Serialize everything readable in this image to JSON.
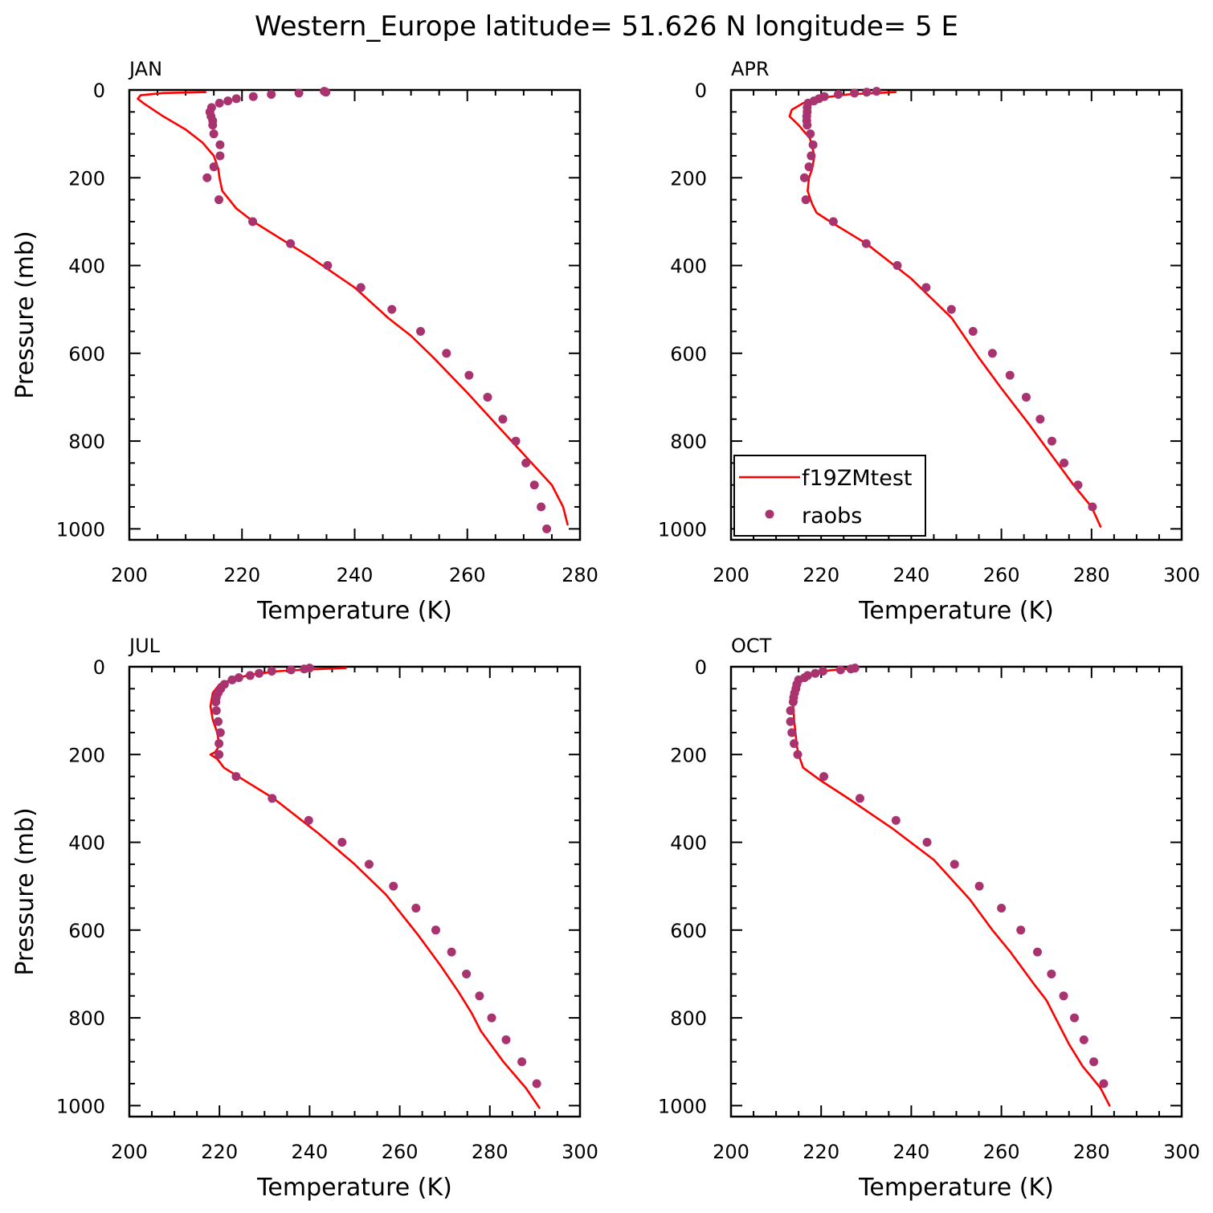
{
  "title": "Western_Europe  latitude= 51.626 N longitude= 5 E",
  "colors": {
    "model": "#ff0000",
    "obs": "#a8336e"
  },
  "legend": {
    "panel": 1,
    "model_label": "f19ZMtest",
    "obs_label": "raobs"
  },
  "chart_data": [
    {
      "type": "line",
      "panel_label": "JAN",
      "xlabel": "Temperature (K)",
      "ylabel": "Pressure (mb)",
      "xlim": [
        200,
        280
      ],
      "ylim": [
        0,
        1025
      ],
      "y_inverted": true,
      "xticks": [
        200,
        220,
        240,
        260,
        280
      ],
      "yticks": [
        0,
        200,
        400,
        600,
        800,
        1000
      ],
      "series": [
        {
          "type": "line",
          "x": [
            213.5,
            206.0,
            202.0,
            201.5,
            202.5,
            206.0,
            210.0,
            213.0,
            215.0,
            215.8,
            216.0,
            216.5,
            219.0,
            222.0,
            232.0,
            240.0,
            246.0,
            250.0,
            254.0,
            260.0,
            265.0,
            270.0,
            275.0,
            277.0,
            277.8
          ],
          "y": [
            5,
            7,
            12,
            20,
            30,
            60,
            90,
            120,
            150,
            180,
            200,
            230,
            270,
            300,
            380,
            450,
            520,
            560,
            610,
            690,
            760,
            830,
            900,
            950,
            990
          ]
        },
        {
          "type": "scatter",
          "x": [
            234.6,
            234.9,
            230.1,
            225.2,
            222.0,
            219.0,
            217.5,
            216.0,
            214.6,
            214.3,
            214.5,
            214.8,
            214.8,
            215.0,
            216.1,
            216.1,
            215.0,
            213.8,
            215.9,
            221.9,
            228.6,
            235.2,
            241.1,
            246.6,
            251.7,
            256.3,
            260.3,
            263.6,
            266.3,
            268.6,
            270.4,
            271.9,
            273.1,
            274.1
          ],
          "y": [
            3,
            5,
            7,
            10,
            15,
            20,
            25,
            30,
            40,
            50,
            60,
            70,
            80,
            100,
            125,
            150,
            175,
            200,
            250,
            300,
            350,
            400,
            450,
            500,
            550,
            600,
            650,
            700,
            750,
            800,
            850,
            900,
            950,
            1000
          ]
        }
      ]
    },
    {
      "type": "line",
      "panel_label": "APR",
      "xlabel": "Temperature (K)",
      "ylabel": "",
      "xlim": [
        200,
        300
      ],
      "ylim": [
        0,
        1025
      ],
      "y_inverted": true,
      "xticks": [
        200,
        220,
        240,
        260,
        280,
        300
      ],
      "yticks": [
        0,
        200,
        400,
        600,
        800,
        1000
      ],
      "series": [
        {
          "type": "line",
          "x": [
            236.5,
            226.0,
            220.0,
            216.0,
            213.5,
            213.0,
            215.0,
            217.5,
            218.5,
            218.0,
            217.3,
            217.0,
            218.0,
            219.0,
            222.0,
            230.0,
            240.0,
            249.0,
            255.0,
            260.0,
            266.0,
            271.0,
            276.0,
            280.0,
            282.0
          ],
          "y": [
            5,
            10,
            18,
            30,
            45,
            60,
            80,
            110,
            150,
            180,
            200,
            230,
            260,
            280,
            300,
            350,
            430,
            520,
            610,
            680,
            760,
            830,
            900,
            950,
            995
          ]
        },
        {
          "type": "scatter",
          "x": [
            232.3,
            230.1,
            227.4,
            223.8,
            220.7,
            219.5,
            218.4,
            217.1,
            216.9,
            216.9,
            216.8,
            216.8,
            216.9,
            217.6,
            218.2,
            217.8,
            217.3,
            216.3,
            216.6,
            222.7,
            230.0,
            236.9,
            243.3,
            248.9,
            253.7,
            258.0,
            261.9,
            265.5,
            268.6,
            271.2,
            273.9,
            277.0,
            280.2
          ],
          "y": [
            3,
            5,
            7,
            10,
            15,
            20,
            25,
            30,
            40,
            50,
            60,
            70,
            80,
            100,
            125,
            150,
            175,
            200,
            250,
            300,
            350,
            400,
            450,
            500,
            550,
            600,
            650,
            700,
            750,
            800,
            850,
            900,
            950
          ]
        }
      ]
    },
    {
      "type": "line",
      "panel_label": "JUL",
      "xlabel": "Temperature (K)",
      "ylabel": "Pressure (mb)",
      "xlim": [
        200,
        300
      ],
      "ylim": [
        0,
        1025
      ],
      "y_inverted": true,
      "xticks": [
        200,
        220,
        240,
        260,
        280,
        300
      ],
      "yticks": [
        0,
        200,
        400,
        600,
        800,
        1000
      ],
      "series": [
        {
          "type": "line",
          "x": [
            248.0,
            240.0,
            233.0,
            227.0,
            223.0,
            220.0,
            218.5,
            218.0,
            218.5,
            219.5,
            220.0,
            219.0,
            218.0,
            219.5,
            221.0,
            232.0,
            242.0,
            250.0,
            257.0,
            264.0,
            269.0,
            273.0,
            276.0,
            278.0,
            283.0,
            288.0,
            291.0
          ],
          "y": [
            3,
            6,
            10,
            18,
            28,
            40,
            60,
            90,
            120,
            150,
            180,
            195,
            200,
            210,
            230,
            300,
            380,
            450,
            520,
            610,
            680,
            740,
            790,
            830,
            900,
            960,
            1005
          ]
        },
        {
          "type": "scatter",
          "x": [
            240.0,
            238.8,
            235.9,
            231.6,
            228.8,
            226.8,
            224.3,
            222.8,
            221.1,
            220.3,
            219.7,
            219.3,
            219.2,
            219.3,
            219.7,
            220.2,
            219.9,
            219.9,
            223.7,
            231.7,
            239.8,
            247.2,
            253.2,
            258.6,
            263.6,
            268.0,
            271.5,
            274.8,
            277.7,
            280.4,
            283.6,
            287.1,
            290.4
          ],
          "y": [
            3,
            5,
            7,
            10,
            15,
            20,
            25,
            30,
            40,
            50,
            60,
            70,
            80,
            100,
            125,
            150,
            175,
            200,
            250,
            300,
            350,
            400,
            450,
            500,
            550,
            600,
            650,
            700,
            750,
            800,
            850,
            900,
            950
          ]
        }
      ]
    },
    {
      "type": "line",
      "panel_label": "OCT",
      "xlabel": "Temperature (K)",
      "ylabel": "",
      "xlim": [
        200,
        300
      ],
      "ylim": [
        0,
        1025
      ],
      "y_inverted": true,
      "xticks": [
        200,
        220,
        240,
        260,
        280,
        300
      ],
      "yticks": [
        0,
        200,
        400,
        600,
        800,
        1000
      ],
      "series": [
        {
          "type": "line",
          "x": [
            228.0,
            222.0,
            218.5,
            216.0,
            214.5,
            214.0,
            213.8,
            214.0,
            214.3,
            214.6,
            215.0,
            216.0,
            220.0,
            226.0,
            236.0,
            245.0,
            253.0,
            258.0,
            262.0,
            267.0,
            270.0,
            272.0,
            275.0,
            278.0,
            282.0,
            284.0
          ],
          "y": [
            3,
            8,
            15,
            25,
            40,
            60,
            90,
            120,
            150,
            180,
            200,
            230,
            260,
            300,
            370,
            440,
            530,
            600,
            650,
            720,
            760,
            800,
            860,
            910,
            960,
            1000
          ]
        },
        {
          "type": "scatter",
          "x": [
            227.5,
            226.6,
            224.3,
            220.4,
            218.7,
            217.0,
            216.3,
            215.0,
            214.6,
            214.4,
            214.1,
            213.9,
            213.8,
            213.2,
            213.2,
            213.5,
            214.0,
            214.8,
            220.6,
            228.6,
            236.6,
            243.5,
            249.6,
            255.1,
            260.0,
            264.3,
            268.0,
            271.1,
            273.8,
            276.2,
            278.3,
            280.5,
            282.7
          ],
          "y": [
            3,
            5,
            7,
            10,
            15,
            20,
            25,
            30,
            40,
            50,
            60,
            70,
            80,
            100,
            125,
            150,
            175,
            200,
            250,
            300,
            350,
            400,
            450,
            500,
            550,
            600,
            650,
            700,
            750,
            800,
            850,
            900,
            950
          ]
        }
      ]
    }
  ]
}
